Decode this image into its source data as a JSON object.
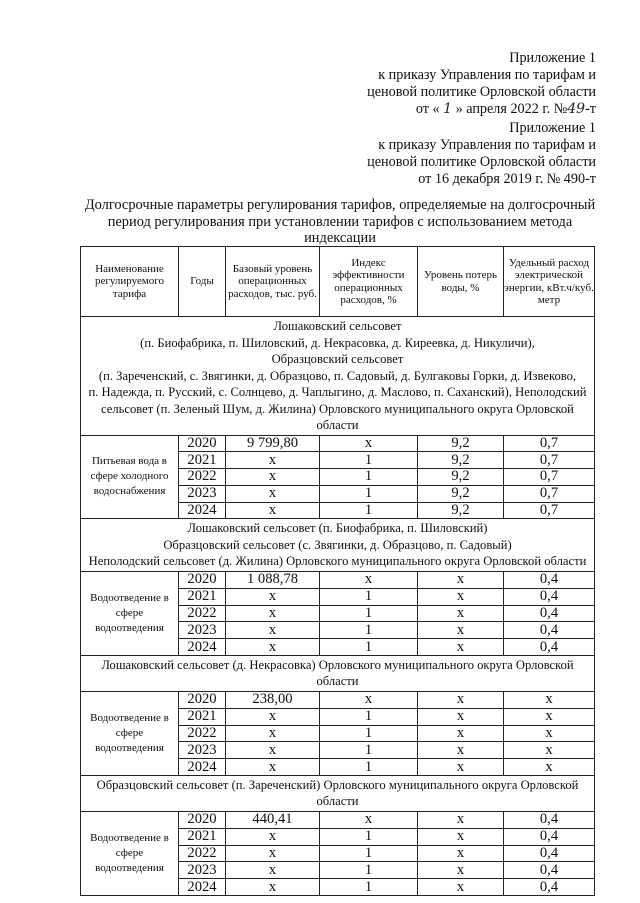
{
  "appendix_new": {
    "lines": [
      "Приложение 1",
      "к приказу Управления по тарифам и",
      "ценовой политике Орловской области"
    ],
    "date_prefix": "от «",
    "day_handwritten": "1",
    "date_middle": "» апреля 2022 г. №",
    "number_handwritten": "49",
    "date_suffix": "-т"
  },
  "appendix_old": {
    "lines": [
      "Приложение 1",
      "к приказу Управления по тарифам и",
      "ценовой политике Орловской области",
      "от 16 декабря 2019 г. № 490-т"
    ]
  },
  "title": [
    "Долгосрочные параметры регулирования тарифов, определяемые на долгосрочный",
    "период регулирования при установлении тарифов с использованием метода",
    "индексации"
  ],
  "table": {
    "headers": [
      "Наименование регулируемого тарифа",
      "Годы",
      "Базовый уровень операционных расходов, тыс. руб.",
      "Индекс эффективности операционных расходов, %",
      "Уровень потерь воды, %",
      "Удельный расход электрической энергии, кВт.ч/куб. метр"
    ],
    "sections": [
      {
        "heading": [
          "Лошаковский сельсовет",
          "(п. Биофабрика, п. Шиловский, д. Некрасовка, д. Киреевка, д. Никуличи),",
          "Образцовский сельсовет",
          "(п. Зареченский, с. Звягинки, д. Образцово, п. Садовый, д. Булгаковы Горки, д. Извеково,",
          "п. Надежда, п. Русский, с. Солнцево, д. Чаплыгино, д. Маслово, п. Саханский), Неполодский",
          "сельсовет (п. Зеленый Шум, д. Жилина) Орловского муниципального округа Орловской области"
        ],
        "tariff": "Питьевая вода в сфере холодного водоснабжения",
        "rows": [
          [
            "2020",
            "9 799,80",
            "х",
            "9,2",
            "0,7"
          ],
          [
            "2021",
            "х",
            "1",
            "9,2",
            "0,7"
          ],
          [
            "2022",
            "х",
            "1",
            "9,2",
            "0,7"
          ],
          [
            "2023",
            "х",
            "1",
            "9,2",
            "0,7"
          ],
          [
            "2024",
            "х",
            "1",
            "9,2",
            "0,7"
          ]
        ]
      },
      {
        "heading": [
          "Лошаковский сельсовет (п. Биофабрика, п. Шиловский)",
          "Образцовский сельсовет (с. Звягинки, д. Образцово, п. Садовый)",
          "Неполодский сельсовет (д. Жилина) Орловского муниципального округа Орловской области"
        ],
        "tariff": "Водоотведение в сфере водоотведения",
        "rows": [
          [
            "2020",
            "1 088,78",
            "х",
            "х",
            "0,4"
          ],
          [
            "2021",
            "х",
            "1",
            "х",
            "0,4"
          ],
          [
            "2022",
            "х",
            "1",
            "х",
            "0,4"
          ],
          [
            "2023",
            "х",
            "1",
            "х",
            "0,4"
          ],
          [
            "2024",
            "х",
            "1",
            "х",
            "0,4"
          ]
        ]
      },
      {
        "heading": [
          "Лошаковский сельсовет (д. Некрасовка) Орловского муниципального округа Орловской области"
        ],
        "tariff": "Водоотведение в сфере водоотведения",
        "rows": [
          [
            "2020",
            "238,00",
            "х",
            "х",
            "х"
          ],
          [
            "2021",
            "х",
            "1",
            "х",
            "х"
          ],
          [
            "2022",
            "х",
            "1",
            "х",
            "х"
          ],
          [
            "2023",
            "х",
            "1",
            "х",
            "х"
          ],
          [
            "2024",
            "х",
            "1",
            "х",
            "х"
          ]
        ]
      },
      {
        "heading": [
          "Образцовский сельсовет (п. Зареченский) Орловского муниципального округа Орловской области"
        ],
        "tariff": "Водоотведение в сфере водоотведения",
        "rows": [
          [
            "2020",
            "440,41",
            "х",
            "х",
            "0,4"
          ],
          [
            "2021",
            "х",
            "1",
            "х",
            "0,4"
          ],
          [
            "2022",
            "х",
            "1",
            "х",
            "0,4"
          ],
          [
            "2023",
            "х",
            "1",
            "х",
            "0,4"
          ],
          [
            "2024",
            "х",
            "1",
            "х",
            "0,4"
          ]
        ]
      }
    ]
  }
}
